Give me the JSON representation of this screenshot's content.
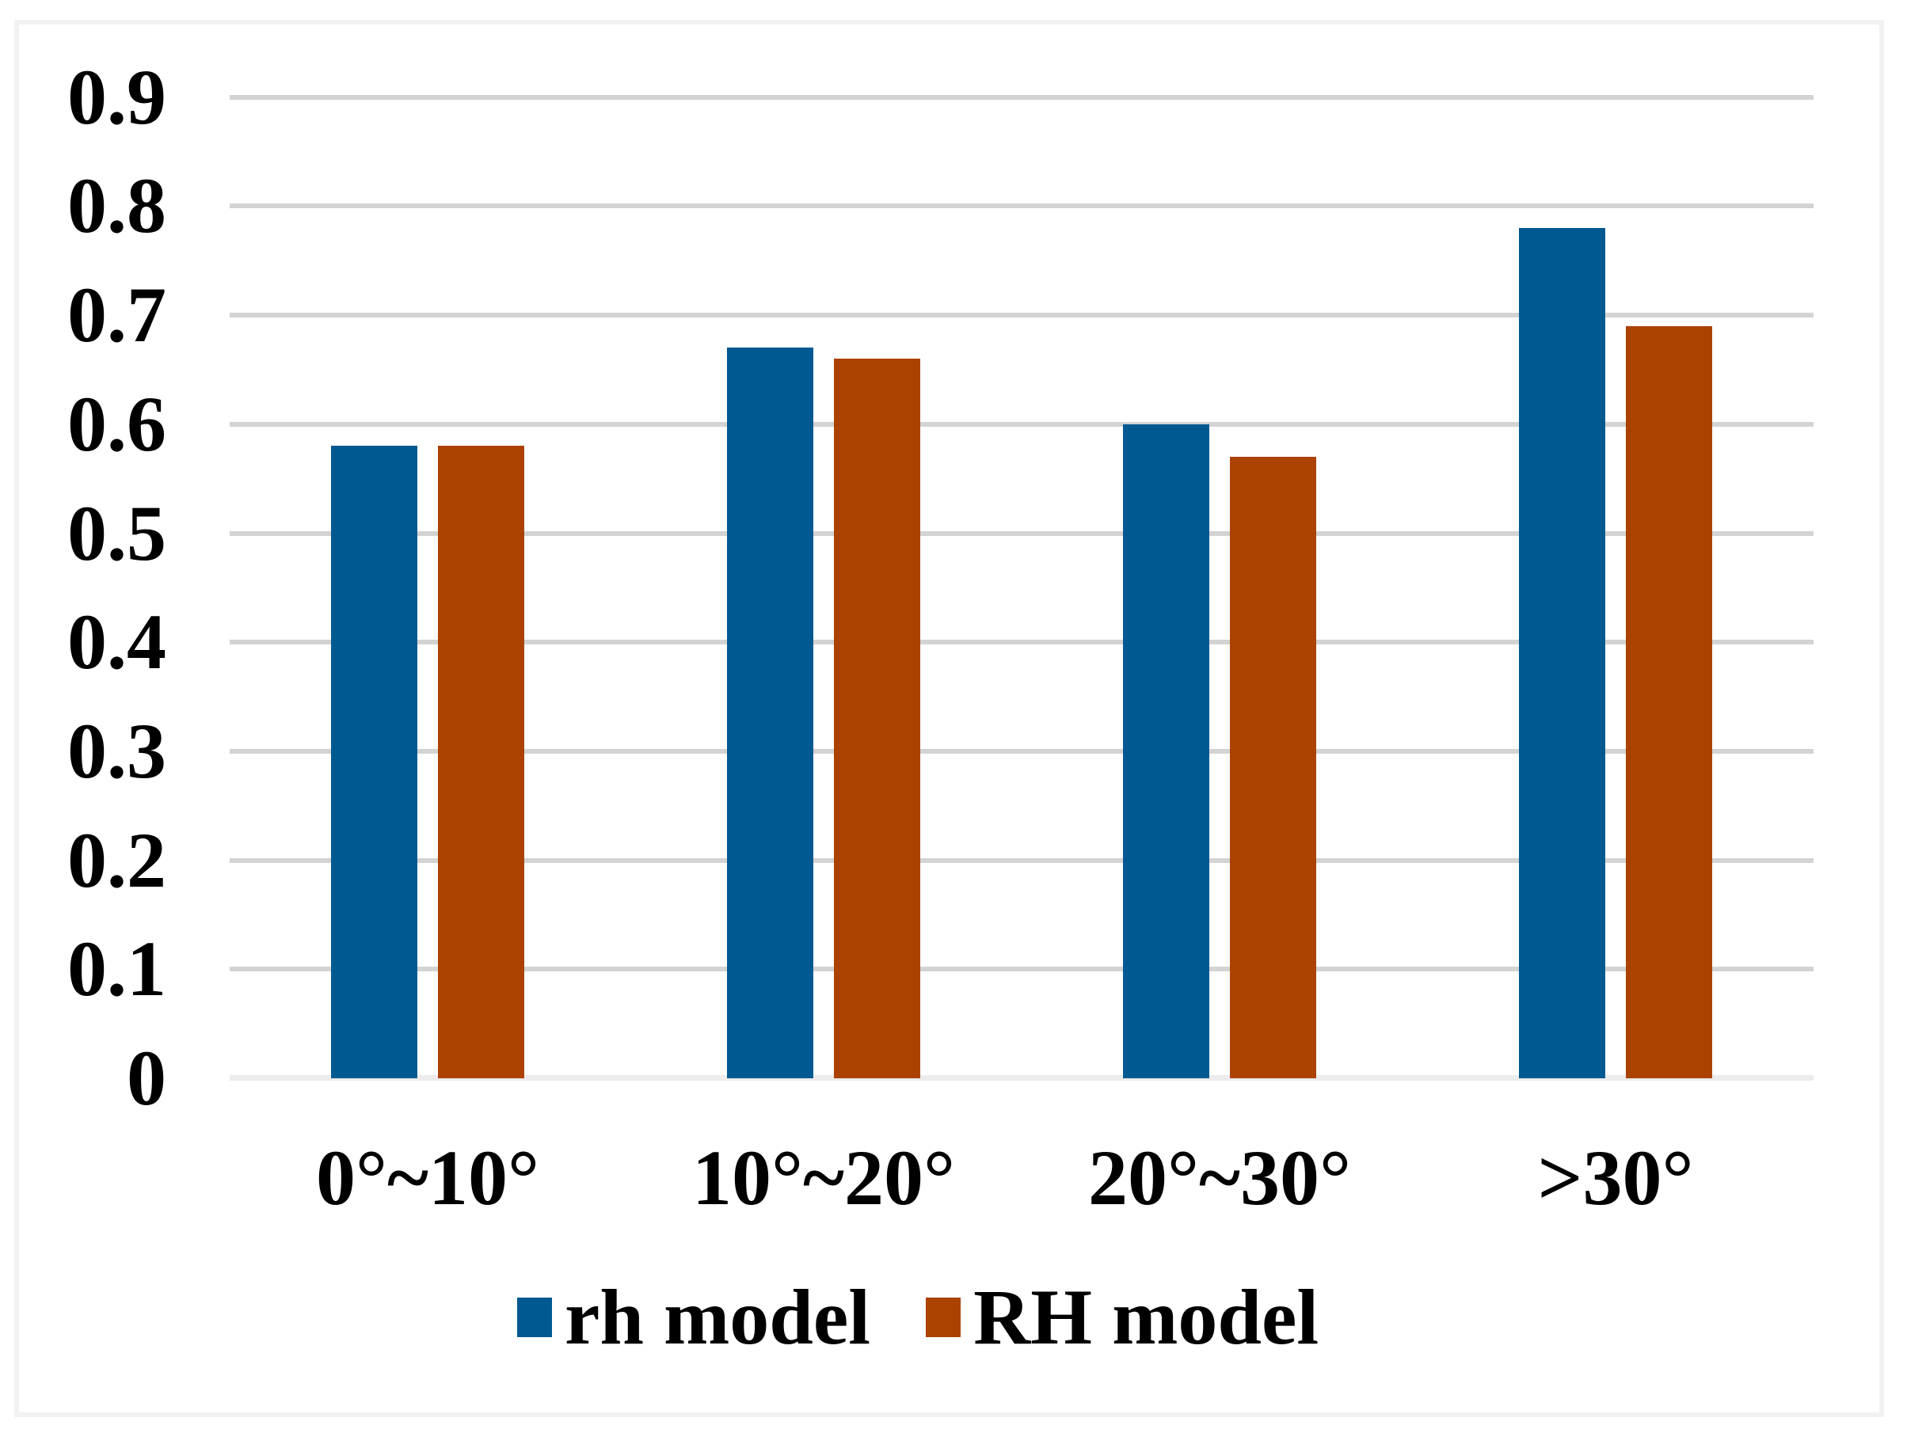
{
  "chart_data": {
    "type": "bar",
    "title": "",
    "xlabel": "",
    "ylabel": "",
    "categories": [
      "0°~10°",
      "10°~20°",
      "20°~30°",
      ">30°"
    ],
    "series": [
      {
        "name": "rh model",
        "color": "#005a91",
        "values": [
          0.58,
          0.67,
          0.6,
          0.78
        ]
      },
      {
        "name": "RH model",
        "color": "#ac4200",
        "values": [
          0.58,
          0.66,
          0.57,
          0.69
        ]
      }
    ],
    "ylim": [
      0,
      0.9
    ],
    "ytick_step": 0.1,
    "ytick_labels": [
      "0",
      "0.1",
      "0.2",
      "0.3",
      "0.4",
      "0.5",
      "0.6",
      "0.7",
      "0.8",
      "0.9"
    ],
    "grid": "horizontal",
    "legend_position": "bottom",
    "colors": {
      "gridline": "#d3d3d3",
      "axisline": "#ececec",
      "frame": "#f2f2f2",
      "background": "#ffffff",
      "text": "#000000"
    }
  }
}
